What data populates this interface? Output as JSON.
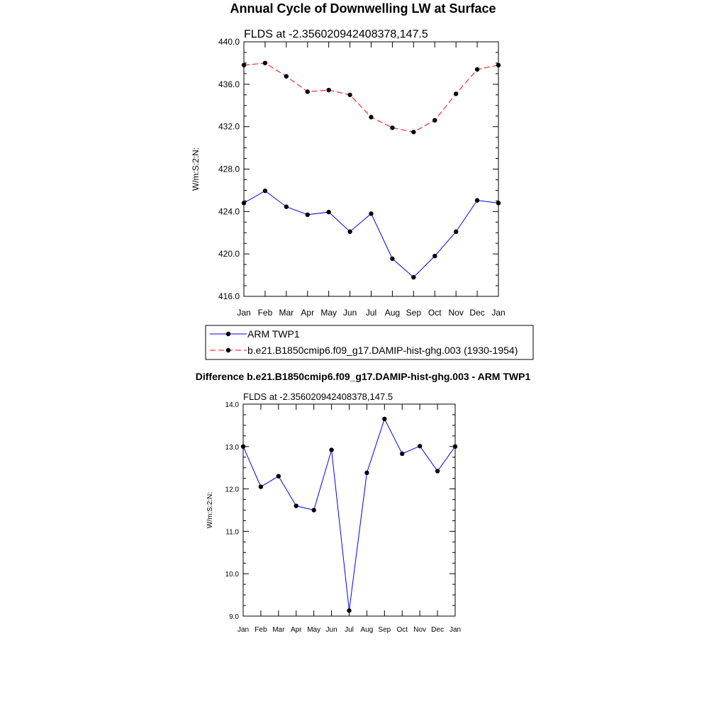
{
  "chart_data": [
    {
      "type": "line",
      "title": "Annual Cycle of Downwelling LW at Surface",
      "subtitle": "FLDS at -2.356020942408378,147.5",
      "xlabel": "",
      "ylabel": "W/m:S:2:N:",
      "categories": [
        "Jan",
        "Feb",
        "Mar",
        "Apr",
        "May",
        "Jun",
        "Jul",
        "Aug",
        "Sep",
        "Oct",
        "Nov",
        "Dec",
        "Jan"
      ],
      "ylim": [
        416.0,
        440.0
      ],
      "yticks": [
        "416.0",
        "420.0",
        "424.0",
        "428.0",
        "432.0",
        "436.0",
        "440.0"
      ],
      "ytick_values": [
        416,
        420,
        424,
        428,
        432,
        436,
        440
      ],
      "series": [
        {
          "name": "ARM TWP1",
          "color": "#0000ff",
          "dash": "solid",
          "values": [
            424.8,
            425.95,
            424.45,
            423.7,
            423.95,
            422.1,
            423.8,
            419.55,
            417.8,
            419.8,
            422.1,
            425.05,
            424.8
          ]
        },
        {
          "name": "b.e21.B1850cmip6.f09_g17.DAMIP-hist-ghg.003 (1930-1954)",
          "color": "#ff0000",
          "dash": "dashed",
          "values": [
            437.8,
            438.0,
            436.75,
            435.3,
            435.45,
            435.0,
            432.9,
            431.9,
            431.5,
            432.6,
            435.1,
            437.4,
            437.8
          ]
        }
      ],
      "legend_position": "bottom"
    },
    {
      "type": "line",
      "title": "Difference b.e21.B1850cmip6.f09_g17.DAMIP-hist-ghg.003 - ARM TWP1",
      "subtitle": "FLDS at -2.356020942408378,147.5",
      "xlabel": "",
      "ylabel": "W/m:S:2:N:",
      "categories": [
        "Jan",
        "Feb",
        "Mar",
        "Apr",
        "May",
        "Jun",
        "Jul",
        "Aug",
        "Sep",
        "Oct",
        "Nov",
        "Dec",
        "Jan"
      ],
      "ylim": [
        9.0,
        14.0
      ],
      "yticks": [
        "9.0",
        "10.0",
        "11.0",
        "12.0",
        "13.0",
        "14.0"
      ],
      "ytick_values": [
        9,
        10,
        11,
        12,
        13,
        14
      ],
      "series": [
        {
          "color": "#0000ff",
          "dash": "solid",
          "values": [
            13.0,
            12.05,
            12.3,
            11.6,
            11.5,
            12.92,
            9.13,
            12.38,
            13.65,
            12.83,
            13.01,
            12.42,
            13.0
          ]
        }
      ]
    }
  ]
}
